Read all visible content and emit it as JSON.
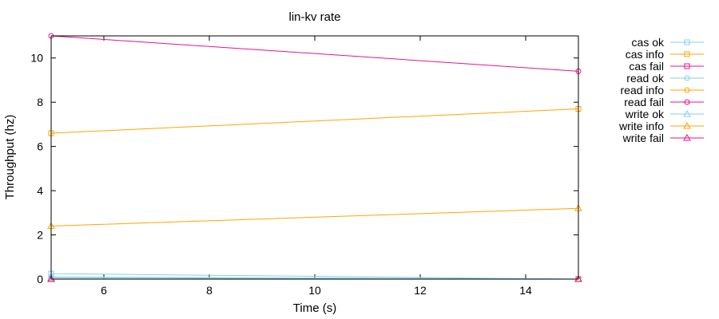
{
  "chart_data": {
    "type": "line",
    "title": "lin-kv rate",
    "xlabel": "Time (s)",
    "ylabel": "Throughput (hz)",
    "xlim": [
      5,
      15
    ],
    "ylim": [
      0,
      11
    ],
    "xticks": [
      6,
      8,
      10,
      12,
      14
    ],
    "yticks": [
      0,
      2,
      4,
      6,
      8,
      10
    ],
    "legend_position": "outside-right",
    "series": [
      {
        "name": "cas ok",
        "color": "#87ceeb",
        "marker": "square",
        "x": [
          5,
          15
        ],
        "y": [
          0.25,
          0
        ]
      },
      {
        "name": "cas info",
        "color": "#ffa500",
        "marker": "square",
        "x": [
          5,
          15
        ],
        "y": [
          6.6,
          7.7
        ]
      },
      {
        "name": "cas fail",
        "color": "#e6148c",
        "marker": "square",
        "x": [
          5,
          15
        ],
        "y": [
          0,
          0
        ]
      },
      {
        "name": "read ok",
        "color": "#87ceeb",
        "marker": "circle",
        "x": [
          5,
          15
        ],
        "y": [
          0.1,
          0
        ]
      },
      {
        "name": "read info",
        "color": "#ffa500",
        "marker": "circle",
        "x": [
          5,
          15
        ],
        "y": [
          0,
          0
        ]
      },
      {
        "name": "read fail",
        "color": "#e6148c",
        "marker": "circle",
        "x": [
          5,
          15
        ],
        "y": [
          11,
          9.4
        ]
      },
      {
        "name": "write ok",
        "color": "#87ceeb",
        "marker": "triangle",
        "x": [
          5,
          15
        ],
        "y": [
          0.05,
          0
        ]
      },
      {
        "name": "write info",
        "color": "#ffa500",
        "marker": "triangle",
        "x": [
          5,
          15
        ],
        "y": [
          2.4,
          3.2
        ]
      },
      {
        "name": "write fail",
        "color": "#e6148c",
        "marker": "triangle",
        "x": [
          5,
          15
        ],
        "y": [
          0,
          0
        ]
      }
    ]
  }
}
